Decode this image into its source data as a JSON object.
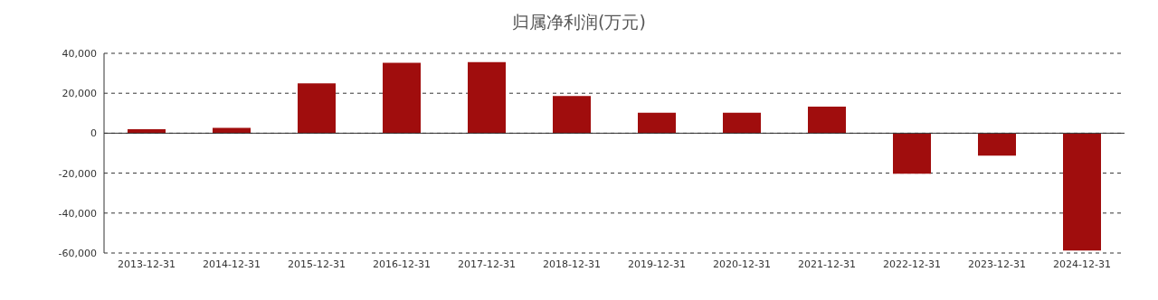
{
  "chart_data": {
    "type": "bar",
    "title": "归属净利润(万元)",
    "categories": [
      "2013-12-31",
      "2014-12-31",
      "2015-12-31",
      "2016-12-31",
      "2017-12-31",
      "2018-12-31",
      "2019-12-31",
      "2020-12-31",
      "2021-12-31",
      "2022-12-31",
      "2023-12-31",
      "2024-12-31"
    ],
    "values": [
      2000,
      2700,
      25000,
      35300,
      35600,
      18600,
      10200,
      10200,
      13300,
      -20300,
      -11200,
      -58700
    ],
    "color": "#a00d0d",
    "ylim": [
      -60000,
      40000
    ],
    "yticks": [
      {
        "value": -60000,
        "label": "-60,000"
      },
      {
        "value": -40000,
        "label": "-40,000"
      },
      {
        "value": -20000,
        "label": "-20,000"
      },
      0,
      {
        "value": 20000,
        "label": "20,000"
      },
      {
        "value": 40000,
        "label": "40,000"
      }
    ],
    "grid": "y"
  }
}
